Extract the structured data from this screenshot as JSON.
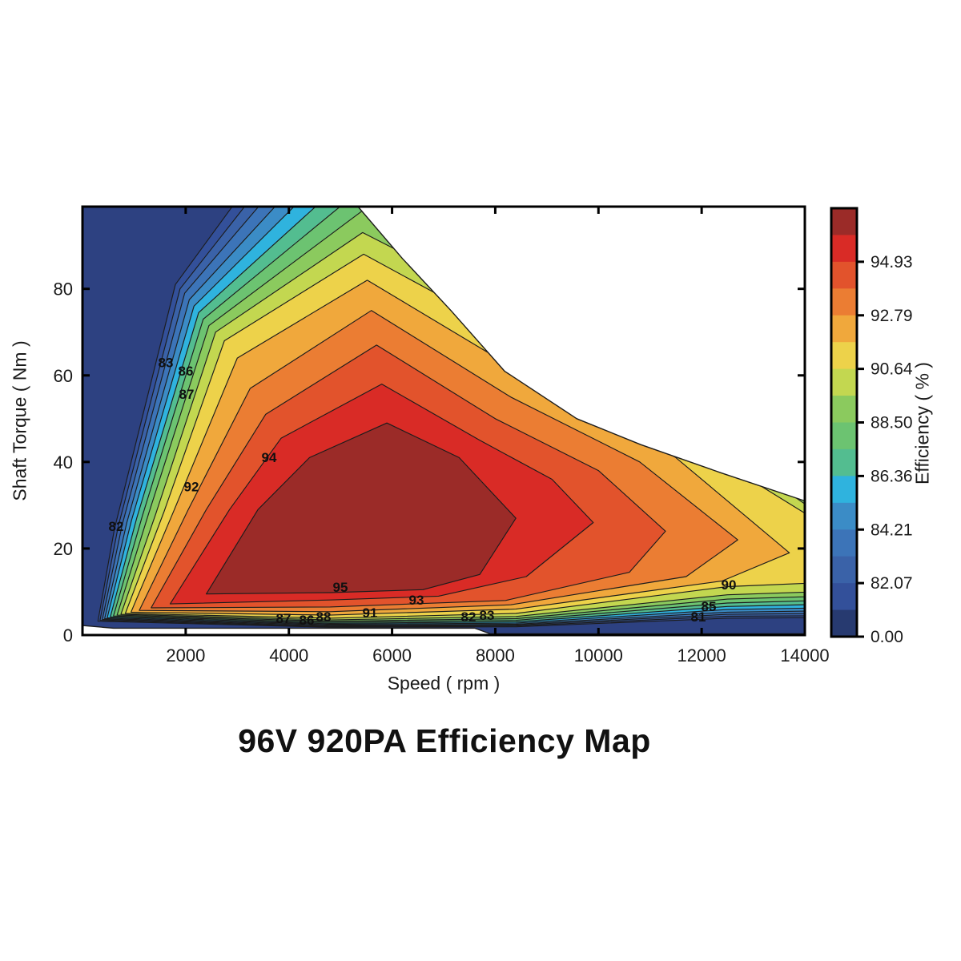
{
  "chart_data": {
    "type": "heatmap",
    "subtype": "filled-contour-efficiency-map",
    "title": "96V 920PA Efficiency Map",
    "xlabel": "Speed ( rpm )",
    "ylabel": "Shaft Torque ( Nm )",
    "xlim": [
      0,
      14000
    ],
    "ylim": [
      0,
      99
    ],
    "x_ticks": [
      2000,
      4000,
      6000,
      8000,
      10000,
      12000,
      14000
    ],
    "y_ticks": [
      0,
      20,
      40,
      60,
      80
    ],
    "grid": false,
    "legend_position": "right-colorbar",
    "base_color": "#2D4181",
    "line_color": "#1c1c1c",
    "envelope": [
      [
        0,
        99
      ],
      [
        5340,
        99
      ],
      [
        6200,
        87
      ],
      [
        7140,
        75
      ],
      [
        8180,
        61
      ],
      [
        9580,
        50
      ],
      [
        10820,
        44
      ],
      [
        12370,
        37.5
      ],
      [
        14000,
        31
      ],
      [
        14000,
        0.3
      ],
      [
        7900,
        0.3
      ],
      [
        7600,
        1.6
      ],
      [
        600,
        1.6
      ],
      [
        0,
        2.2
      ]
    ],
    "levels": [
      {
        "level": 81,
        "color": "#33509A",
        "points": [
          [
            4980,
            133
          ],
          [
            1800,
            81
          ],
          [
            620,
            24.5
          ],
          [
            300,
            3.2
          ],
          [
            4800,
            1.8
          ],
          [
            8400,
            1.9
          ],
          [
            12500,
            3.9
          ],
          [
            14700,
            4.05
          ],
          [
            14700,
            33.3
          ],
          [
            10800,
            118
          ]
        ]
      },
      {
        "level": 82,
        "color": "#3A62A8",
        "points": [
          [
            5050,
            128
          ],
          [
            1890,
            80
          ],
          [
            690,
            25
          ],
          [
            340,
            3.4
          ],
          [
            4800,
            1.95
          ],
          [
            8400,
            2.1
          ],
          [
            12500,
            4.35
          ],
          [
            14700,
            4.5
          ],
          [
            14700,
            32.3
          ],
          [
            10600,
            112
          ]
        ]
      },
      {
        "level": 83,
        "color": "#3C74B8",
        "points": [
          [
            5130,
            123
          ],
          [
            1980,
            79
          ],
          [
            770,
            25.5
          ],
          [
            385,
            3.6
          ],
          [
            4800,
            2.1
          ],
          [
            8400,
            2.3
          ],
          [
            12500,
            4.8
          ],
          [
            14700,
            5.05
          ],
          [
            14700,
            31.3
          ],
          [
            10400,
            106
          ]
        ]
      },
      {
        "level": 84,
        "color": "#3B8CC6",
        "points": [
          [
            5200,
            118
          ],
          [
            2070,
            77.5
          ],
          [
            860,
            26
          ],
          [
            430,
            3.8
          ],
          [
            4800,
            2.3
          ],
          [
            8400,
            2.5
          ],
          [
            12500,
            5.3
          ],
          [
            14700,
            5.65
          ],
          [
            14700,
            30.3
          ],
          [
            10200,
            100
          ]
        ]
      },
      {
        "level": 85,
        "color": "#2FB3DE",
        "points": [
          [
            5280,
            113
          ],
          [
            2160,
            76
          ],
          [
            950,
            26.5
          ],
          [
            480,
            4.0
          ],
          [
            4800,
            2.5
          ],
          [
            8400,
            2.75
          ],
          [
            12500,
            5.9
          ],
          [
            14700,
            6.35
          ],
          [
            14700,
            29.3
          ],
          [
            10000,
            94
          ]
        ]
      },
      {
        "level": 86,
        "color": "#53BD90",
        "points": [
          [
            5350,
            108
          ],
          [
            2250,
            74.5
          ],
          [
            1050,
            27
          ],
          [
            540,
            4.2
          ],
          [
            4800,
            2.7
          ],
          [
            8400,
            3.05
          ],
          [
            12500,
            6.6
          ],
          [
            14700,
            7.2
          ],
          [
            14700,
            28.3
          ],
          [
            9800,
            88
          ]
        ]
      },
      {
        "level": 87,
        "color": "#6CC371",
        "points": [
          [
            5400,
            103
          ],
          [
            2340,
            73
          ],
          [
            1160,
            27.5
          ],
          [
            600,
            4.4
          ],
          [
            4800,
            2.95
          ],
          [
            8400,
            3.4
          ],
          [
            12500,
            7.4
          ],
          [
            14700,
            8.15
          ],
          [
            14700,
            27.2
          ],
          [
            9600,
            82
          ]
        ]
      },
      {
        "level": 88,
        "color": "#8BCA5E",
        "points": [
          [
            5420,
            98
          ],
          [
            2450,
            71.5
          ],
          [
            1280,
            28
          ],
          [
            670,
            4.6
          ],
          [
            4800,
            3.2
          ],
          [
            8400,
            3.8
          ],
          [
            12500,
            8.3
          ],
          [
            14700,
            9.1
          ],
          [
            14700,
            26
          ],
          [
            9400,
            76
          ]
        ]
      },
      {
        "level": 89,
        "color": "#C3D750",
        "points": [
          [
            5430,
            93
          ],
          [
            2580,
            70
          ],
          [
            1420,
            28
          ],
          [
            745,
            4.8
          ],
          [
            4800,
            3.5
          ],
          [
            8400,
            4.3
          ],
          [
            12500,
            9.3
          ],
          [
            14700,
            10.2
          ],
          [
            14700,
            24.5
          ],
          [
            9200,
            70
          ]
        ]
      },
      {
        "level": 90,
        "color": "#EDD24A",
        "points": [
          [
            5450,
            88
          ],
          [
            2750,
            68
          ],
          [
            1580,
            28.5
          ],
          [
            830,
            5.0
          ],
          [
            4800,
            3.9
          ],
          [
            8400,
            5.0
          ],
          [
            12500,
            11.2
          ],
          [
            14700,
            12.3
          ],
          [
            14700,
            23
          ],
          [
            9000,
            65
          ]
        ]
      },
      {
        "level": 91,
        "color": "#F0A83C",
        "points": [
          [
            5520,
            82
          ],
          [
            3000,
            64
          ],
          [
            1780,
            29
          ],
          [
            940,
            5.3
          ],
          [
            4800,
            4.6
          ],
          [
            8400,
            6.0
          ],
          [
            12400,
            12.5
          ],
          [
            13700,
            19
          ],
          [
            11500,
            41
          ],
          [
            8600,
            60
          ]
        ]
      },
      {
        "level": 92,
        "color": "#EB7D33",
        "points": [
          [
            5600,
            75
          ],
          [
            3250,
            57
          ],
          [
            2050,
            29
          ],
          [
            1100,
            5.7
          ],
          [
            4800,
            5.4
          ],
          [
            8300,
            7.0
          ],
          [
            11700,
            13.5
          ],
          [
            12700,
            22
          ],
          [
            10800,
            40
          ],
          [
            8300,
            55
          ]
        ]
      },
      {
        "level": 93,
        "color": "#E2532C",
        "points": [
          [
            5700,
            67
          ],
          [
            3550,
            51
          ],
          [
            2400,
            29
          ],
          [
            1330,
            6.3
          ],
          [
            4800,
            6.5
          ],
          [
            8200,
            8.0
          ],
          [
            10600,
            14.5
          ],
          [
            11300,
            24
          ],
          [
            10000,
            38
          ],
          [
            8000,
            50
          ]
        ]
      },
      {
        "level": 94,
        "color": "#D92B26",
        "points": [
          [
            5800,
            58
          ],
          [
            3850,
            45.5
          ],
          [
            2850,
            29
          ],
          [
            1700,
            7.2
          ],
          [
            4800,
            8.1
          ],
          [
            6900,
            9.0
          ],
          [
            8600,
            13.5
          ],
          [
            9900,
            26
          ],
          [
            9100,
            36
          ],
          [
            7700,
            45
          ]
        ]
      },
      {
        "level": 95,
        "color": "#9B2B28",
        "points": [
          [
            5900,
            49
          ],
          [
            4400,
            41
          ],
          [
            3400,
            29
          ],
          [
            2400,
            9.5
          ],
          [
            4800,
            9.8
          ],
          [
            6600,
            10.5
          ],
          [
            7700,
            14
          ],
          [
            8400,
            27
          ],
          [
            7300,
            41
          ]
        ]
      }
    ],
    "contour_labels": [
      {
        "text": "83",
        "rpm": 1614,
        "t": 63.0
      },
      {
        "text": "86",
        "rpm": 2002,
        "t": 61.1
      },
      {
        "text": "87",
        "rpm": 2018,
        "t": 55.7
      },
      {
        "text": "94",
        "rpm": 3616,
        "t": 41.1
      },
      {
        "text": "92",
        "rpm": 2111,
        "t": 34.3
      },
      {
        "text": "82",
        "rpm": 652,
        "t": 25.2
      },
      {
        "text": "95",
        "rpm": 4997,
        "t": 11.1
      },
      {
        "text": "93",
        "rpm": 6472,
        "t": 8.1
      },
      {
        "text": "91",
        "rpm": 5572,
        "t": 5.2
      },
      {
        "text": "87",
        "rpm": 3896,
        "t": 3.9
      },
      {
        "text": "86",
        "rpm": 4346,
        "t": 3.5
      },
      {
        "text": "88",
        "rpm": 4672,
        "t": 4.3
      },
      {
        "text": "82",
        "rpm": 7481,
        "t": 4.3
      },
      {
        "text": "83",
        "rpm": 7838,
        "t": 4.6
      },
      {
        "text": "90",
        "rpm": 12525,
        "t": 11.7
      },
      {
        "text": "85",
        "rpm": 12137,
        "t": 6.7
      },
      {
        "text": "81",
        "rpm": 11936,
        "t": 4.3
      }
    ],
    "colorbar": {
      "label": "Efficiency ( % )",
      "colors_top_to_bottom": [
        "#9B2B28",
        "#D92B26",
        "#E2532C",
        "#EB7D33",
        "#F0A83C",
        "#EDD24A",
        "#C3D750",
        "#8BCA5E",
        "#6CC371",
        "#53BD90",
        "#2FB3DE",
        "#3B8CC6",
        "#3C74B8",
        "#3A62A8",
        "#33509A",
        "#273A70"
      ],
      "ticks": [
        {
          "label": "94.93",
          "band": 14
        },
        {
          "label": "92.79",
          "band": 12
        },
        {
          "label": "90.64",
          "band": 10
        },
        {
          "label": "88.50",
          "band": 8
        },
        {
          "label": "86.36",
          "band": 6
        },
        {
          "label": "84.21",
          "band": 4
        },
        {
          "label": "82.07",
          "band": 2
        },
        {
          "label": "0.00",
          "band": 0
        }
      ]
    }
  }
}
